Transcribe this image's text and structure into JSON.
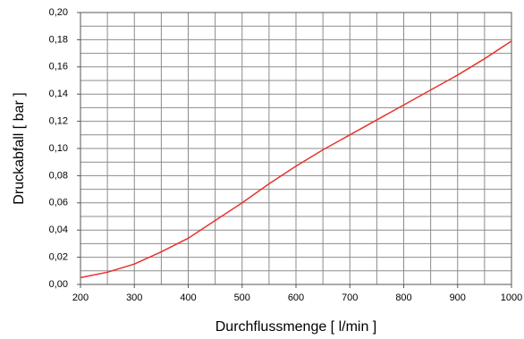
{
  "chart_data": {
    "type": "line",
    "xlabel": "Durchflussmenge [ l/min ]",
    "ylabel": "Druckabfall [ bar ]",
    "x": [
      200,
      250,
      300,
      350,
      400,
      450,
      500,
      550,
      600,
      650,
      700,
      750,
      800,
      850,
      900,
      950,
      1000
    ],
    "series": [
      {
        "color": "#e8322d",
        "values": [
          0.005,
          0.009,
          0.015,
          0.024,
          0.034,
          0.047,
          0.06,
          0.074,
          0.087,
          0.099,
          0.11,
          0.121,
          0.132,
          0.143,
          0.154,
          0.166,
          0.179
        ]
      }
    ],
    "xlim": [
      200,
      1000
    ],
    "xticks": [
      200,
      300,
      400,
      500,
      600,
      700,
      800,
      900,
      1000
    ],
    "ylim": [
      0,
      0.2
    ],
    "yticks": [
      {
        "value": 0,
        "label": "0,00"
      },
      {
        "value": 0.02,
        "label": "0,02"
      },
      {
        "value": 0.04,
        "label": "0,04"
      },
      {
        "value": 0.06,
        "label": "0,06"
      },
      {
        "value": 0.08,
        "label": "0,08"
      },
      {
        "value": 0.1,
        "label": "0,10"
      },
      {
        "value": 0.12,
        "label": "0,12"
      },
      {
        "value": 0.14,
        "label": "0,14"
      },
      {
        "value": 0.16,
        "label": "0,16"
      },
      {
        "value": 0.18,
        "label": "0,18"
      },
      {
        "value": 0.2,
        "label": "0,20"
      }
    ],
    "xgrid": [
      200,
      250,
      300,
      350,
      400,
      450,
      500,
      550,
      600,
      650,
      700,
      750,
      800,
      850,
      900,
      950,
      1000
    ],
    "ygrid": [
      0,
      0.01,
      0.02,
      0.03,
      0.04,
      0.05,
      0.06,
      0.07,
      0.08,
      0.09,
      0.1,
      0.11,
      0.12,
      0.13,
      0.14,
      0.15,
      0.16,
      0.17,
      0.18,
      0.19,
      0.2
    ],
    "grid": true
  }
}
